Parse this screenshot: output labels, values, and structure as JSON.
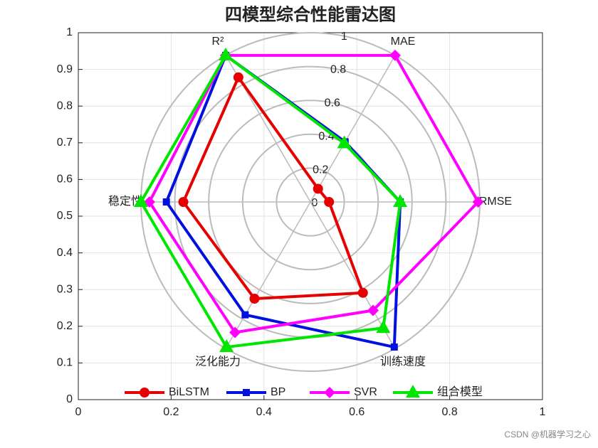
{
  "chart_data": {
    "type": "radar",
    "title": "四模型综合性能雷达图",
    "categories": [
      "RMSE",
      "MAE",
      "R²",
      "稳定性",
      "泛化能力",
      "训练速度"
    ],
    "rlim": [
      0,
      1
    ],
    "rticks": [
      0,
      0.2,
      0.4,
      0.6,
      0.8,
      1
    ],
    "xlim": [
      0,
      1
    ],
    "xticks": [
      0,
      0.2,
      0.4,
      0.6,
      0.8,
      1
    ],
    "ylim": [
      0,
      1
    ],
    "yticks": [
      0,
      0.1,
      0.2,
      0.3,
      0.4,
      0.5,
      0.6,
      0.7,
      0.8,
      0.9,
      1
    ],
    "grid": true,
    "legend": "bottom",
    "series": [
      {
        "name": "BiLSTM",
        "color": "#e60000",
        "marker": "circle",
        "values": [
          0.11,
          0.09,
          0.85,
          0.75,
          0.66,
          0.62
        ]
      },
      {
        "name": "BP",
        "color": "#0010e0",
        "marker": "square",
        "values": [
          0.53,
          0.41,
          1.0,
          0.85,
          0.77,
          0.99
        ]
      },
      {
        "name": "SVR",
        "color": "#ff00ff",
        "marker": "diamond",
        "values": [
          0.99,
          1.0,
          1.0,
          0.95,
          0.89,
          0.74
        ]
      },
      {
        "name": "组合模型",
        "color": "#00e600",
        "marker": "triangle",
        "values": [
          0.53,
          0.4,
          1.0,
          1.0,
          0.99,
          0.86
        ]
      }
    ],
    "footer": "CSDN @机器学习之心"
  }
}
